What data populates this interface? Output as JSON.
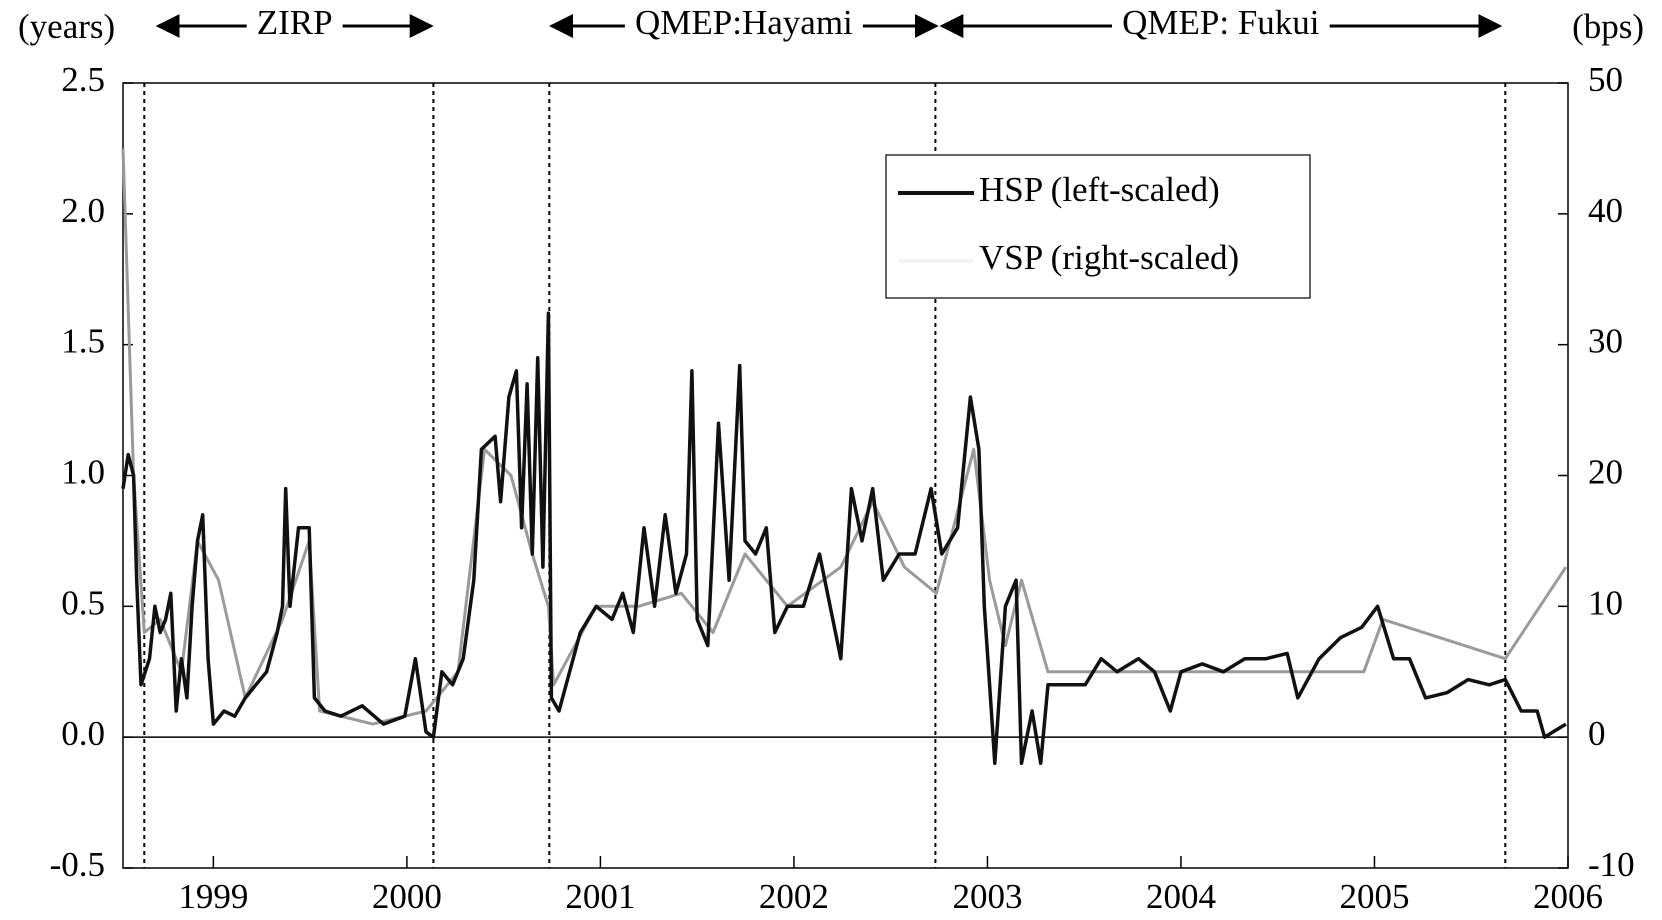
{
  "chart_data": {
    "type": "line",
    "y_label": "(years)",
    "y2_label": "(bps)",
    "xlim": [
      1998.533,
      2006.0
    ],
    "xticks": [
      1999,
      2000,
      2001,
      2002,
      2003,
      2004,
      2005,
      2006
    ],
    "ylim": [
      -0.5,
      2.5
    ],
    "yticks": [
      2.5,
      {
        "value": 2,
        "label": "2.0"
      },
      1.5,
      {
        "value": 1,
        "label": "1.0"
      },
      0.5,
      {
        "value": 0,
        "label": "0.0"
      },
      -0.5
    ],
    "y2lim": [
      -10,
      50
    ],
    "y2ticks": [
      50,
      40,
      30,
      20,
      10,
      0,
      -10
    ],
    "legend": "upper right",
    "vlines": [
      1998.643,
      2000.137,
      2000.736,
      2002.731,
      2005.676
    ],
    "annotations": [
      {
        "text": "ZIRP",
        "from": 1998.714,
        "to": 2000.126
      },
      {
        "text": "QMEP:Hayami",
        "from": 2000.747,
        "to": 2002.736
      },
      {
        "text": "QMEP: Fukui",
        "from": 2002.764,
        "to": 2005.648
      }
    ],
    "series": [
      {
        "name": "HSP (left-scaled)",
        "color": "#111111",
        "axis": "y",
        "x": [
          1998.533,
          1998.56,
          1998.588,
          1998.604,
          1998.626,
          1998.67,
          1998.698,
          1998.725,
          1998.753,
          1998.78,
          1998.808,
          1998.835,
          1998.863,
          1998.89,
          1998.918,
          1998.945,
          1998.973,
          1999.0,
          1999.055,
          1999.11,
          1999.165,
          1999.22,
          1999.275,
          1999.33,
          1999.357,
          1999.374,
          1999.396,
          1999.44,
          1999.495,
          1999.522,
          1999.577,
          1999.659,
          1999.769,
          1999.879,
          1999.989,
          2000.044,
          2000.099,
          2000.137,
          2000.181,
          2000.236,
          2000.291,
          2000.346,
          2000.385,
          2000.456,
          2000.484,
          2000.527,
          2000.566,
          2000.593,
          2000.621,
          2000.648,
          2000.676,
          2000.703,
          2000.731,
          2000.747,
          2000.786,
          2000.841,
          2000.896,
          2000.978,
          2001.06,
          2001.115,
          2001.17,
          2001.225,
          2001.28,
          2001.335,
          2001.39,
          2001.445,
          2001.473,
          2001.5,
          2001.555,
          2001.61,
          2001.665,
          2001.72,
          2001.747,
          2001.802,
          2001.857,
          2001.901,
          2001.967,
          2002.049,
          2002.132,
          2002.242,
          2002.297,
          2002.352,
          2002.407,
          2002.462,
          2002.544,
          2002.626,
          2002.709,
          2002.764,
          2002.846,
          2002.912,
          2002.956,
          2002.984,
          2003.011,
          2003.038,
          2003.093,
          2003.148,
          2003.176,
          2003.231,
          2003.275,
          2003.313,
          2003.396,
          2003.505,
          2003.588,
          2003.67,
          2003.78,
          2003.863,
          2003.945,
          2004.0,
          2004.11,
          2004.22,
          2004.33,
          2004.44,
          2004.549,
          2004.604,
          2004.714,
          2004.824,
          2004.934,
          2005.016,
          2005.099,
          2005.181,
          2005.264,
          2005.374,
          2005.484,
          2005.593,
          2005.676,
          2005.758,
          2005.841,
          2005.879,
          2005.923,
          2005.989
        ],
        "values": [
          0.95,
          1.08,
          1.0,
          0.6,
          0.2,
          0.3,
          0.5,
          0.4,
          0.45,
          0.55,
          0.1,
          0.3,
          0.15,
          0.5,
          0.75,
          0.85,
          0.3,
          0.05,
          0.1,
          0.08,
          0.15,
          0.2,
          0.25,
          0.4,
          0.5,
          0.95,
          0.5,
          0.8,
          0.8,
          0.15,
          0.1,
          0.08,
          0.12,
          0.05,
          0.08,
          0.3,
          0.02,
          0.0,
          0.25,
          0.2,
          0.3,
          0.6,
          1.1,
          1.15,
          0.9,
          1.3,
          1.4,
          0.8,
          1.35,
          0.7,
          1.45,
          0.65,
          1.62,
          0.15,
          0.1,
          0.25,
          0.4,
          0.5,
          0.45,
          0.55,
          0.4,
          0.8,
          0.5,
          0.85,
          0.55,
          0.7,
          1.4,
          0.45,
          0.35,
          1.2,
          0.6,
          1.42,
          0.75,
          0.7,
          0.8,
          0.4,
          0.5,
          0.5,
          0.7,
          0.3,
          0.95,
          0.75,
          0.95,
          0.6,
          0.7,
          0.7,
          0.95,
          0.7,
          0.8,
          1.3,
          1.1,
          0.5,
          0.2,
          -0.1,
          0.5,
          0.6,
          -0.1,
          0.1,
          -0.1,
          0.2,
          0.2,
          0.2,
          0.3,
          0.25,
          0.3,
          0.25,
          0.1,
          0.25,
          0.28,
          0.25,
          0.3,
          0.3,
          0.32,
          0.15,
          0.3,
          0.38,
          0.42,
          0.5,
          0.3,
          0.3,
          0.15,
          0.17,
          0.22,
          0.2,
          0.22,
          0.1,
          0.1,
          0.0,
          0.02,
          0.05
        ]
      },
      {
        "name": "VSP (right-scaled)",
        "color": "#9a9a9a",
        "axis": "y2",
        "x": [
          1998.533,
          1998.588,
          1998.643,
          1998.725,
          1998.835,
          1998.918,
          1999.027,
          1999.165,
          1999.357,
          1999.495,
          1999.549,
          1999.824,
          2000.099,
          2000.264,
          2000.401,
          2000.538,
          2000.648,
          2000.731,
          2000.758,
          2000.978,
          2001.198,
          2001.418,
          2001.582,
          2001.747,
          2001.967,
          2002.242,
          2002.407,
          2002.571,
          2002.736,
          2002.929,
          2003.011,
          2003.093,
          2003.176,
          2003.313,
          2004.945,
          2005.044,
          2005.676,
          2005.989
        ],
        "values": [
          45,
          20,
          8,
          9,
          5,
          15,
          12,
          3,
          9,
          15,
          2,
          1,
          2,
          5,
          22,
          20,
          14,
          10,
          4,
          10,
          10,
          11,
          8,
          14,
          10,
          13,
          18,
          13,
          11,
          22,
          12,
          7,
          12,
          5,
          5,
          9,
          6,
          13
        ]
      }
    ]
  }
}
